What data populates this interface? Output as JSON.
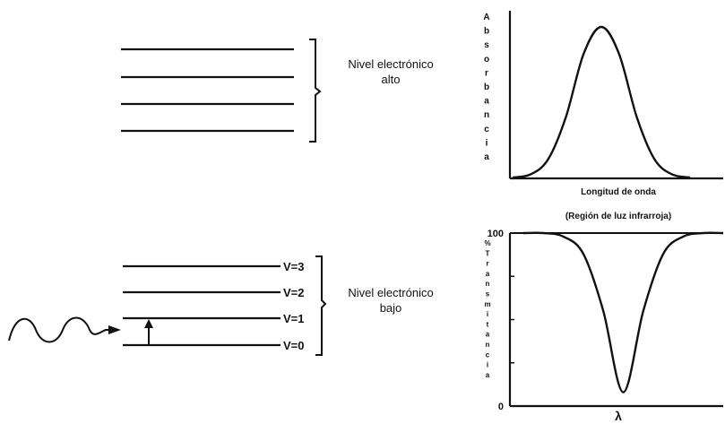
{
  "colors": {
    "ink": "#111111",
    "background": "#ffffff"
  },
  "energy_diagram": {
    "upper_state": {
      "label_line1": "Nivel electrónico",
      "label_line2": "alto",
      "level_count": 4
    },
    "lower_state": {
      "label_line1": "Nivel electrónico",
      "label_line2": "bajo",
      "vibrational_levels": [
        "V=3",
        "V=2",
        "V=1",
        "V=0"
      ]
    },
    "radiation_icon": "wavy-arrow-icon",
    "transition_icon": "up-arrow-icon"
  },
  "chart_data": [
    {
      "type": "line",
      "title": "",
      "xlabel": "Longitud de onda",
      "ylabel": "Absorbancia",
      "ylabel_letters": [
        "A",
        "b",
        "s",
        "o",
        "r",
        "b",
        "a",
        "n",
        "c",
        "i",
        "a"
      ],
      "shape": "single absorption peak (Gaussian)",
      "series": [
        {
          "x": [
            0,
            0.1,
            0.2,
            0.3,
            0.4,
            0.5,
            0.6,
            0.7,
            0.8,
            0.9,
            1
          ],
          "values": [
            0.0,
            0.02,
            0.12,
            0.4,
            0.82,
            1.0,
            0.82,
            0.4,
            0.12,
            0.02,
            0.0
          ]
        }
      ]
    },
    {
      "type": "line",
      "title": "",
      "subtitle": "(Región de luz infrarroja)",
      "xlabel": "λ",
      "ylabel_letters": [
        "%",
        "T",
        "r",
        "a",
        "n",
        "s",
        "m",
        "i",
        "t",
        "a",
        "n",
        "c",
        "i",
        "a"
      ],
      "ytick_labels": [
        "100",
        "0"
      ],
      "ylim": [
        0,
        100
      ],
      "shape": "single transmittance dip",
      "series": [
        {
          "x": [
            0,
            0.1,
            0.2,
            0.3,
            0.4,
            0.5,
            0.6,
            0.7,
            0.8,
            0.9,
            1
          ],
          "values": [
            100,
            100,
            98,
            88,
            55,
            8,
            55,
            88,
            98,
            100,
            100
          ]
        }
      ]
    }
  ]
}
